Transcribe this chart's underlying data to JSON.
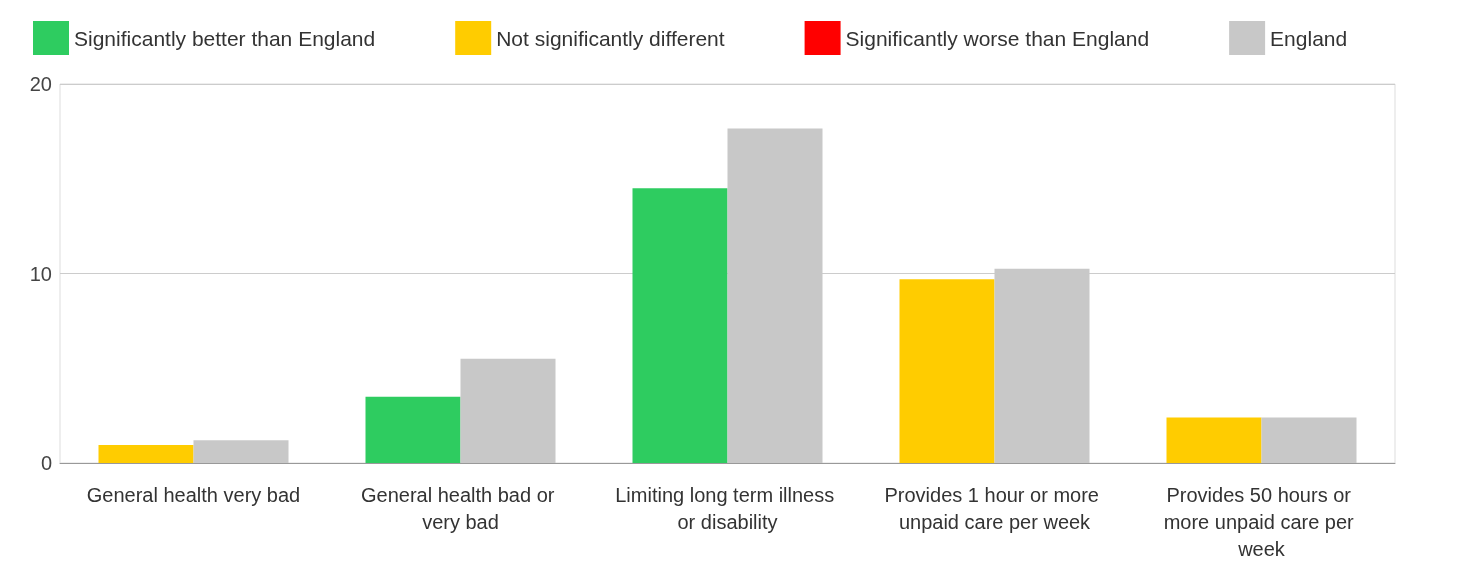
{
  "chart_data": {
    "type": "bar",
    "categories": [
      "General health very bad",
      "General health bad or very bad",
      "Limiting long term illness or disability",
      "Provides 1 hour or more unpaid care per week",
      "Provides 50 hours or more unpaid care per week"
    ],
    "series": [
      {
        "name": "Significantly better than England",
        "color": "#2ecc60",
        "values": [
          null,
          3.5,
          14.5,
          null,
          null
        ]
      },
      {
        "name": "Not significantly different",
        "color": "#ffcc00",
        "values": [
          0.95,
          null,
          null,
          9.7,
          2.4
        ]
      },
      {
        "name": "Significantly worse than England",
        "color": "#ff0000",
        "values": [
          null,
          null,
          null,
          null,
          null
        ]
      },
      {
        "name": "England",
        "color": "#c8c8c8",
        "values": [
          1.2,
          5.5,
          17.65,
          10.25,
          2.4
        ]
      }
    ],
    "ylim": [
      0,
      20
    ],
    "yticks": [
      0,
      10,
      20
    ],
    "grid": "y",
    "legend": "top"
  }
}
